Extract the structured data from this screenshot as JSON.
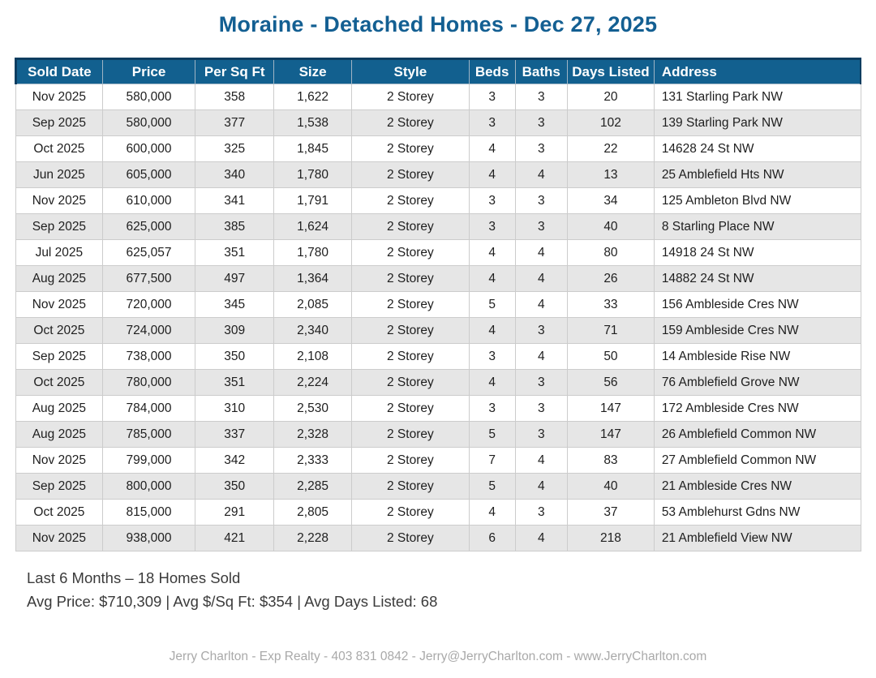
{
  "page": {
    "title": "Moraine - Detached Homes - Dec 27, 2025"
  },
  "table": {
    "columns": [
      "Sold Date",
      "Price",
      "Per Sq Ft",
      "Size",
      "Style",
      "Beds",
      "Baths",
      "Days Listed",
      "Address"
    ],
    "column_keys": [
      "sold-date",
      "price",
      "per-sq-ft",
      "size",
      "style",
      "beds",
      "baths",
      "days-listed",
      "address"
    ],
    "rows": [
      [
        "Nov 2025",
        "580,000",
        "358",
        "1,622",
        "2 Storey",
        "3",
        "3",
        "20",
        "131 Starling Park NW"
      ],
      [
        "Sep 2025",
        "580,000",
        "377",
        "1,538",
        "2 Storey",
        "3",
        "3",
        "102",
        "139 Starling Park NW"
      ],
      [
        "Oct 2025",
        "600,000",
        "325",
        "1,845",
        "2 Storey",
        "4",
        "3",
        "22",
        "14628 24 St NW"
      ],
      [
        "Jun 2025",
        "605,000",
        "340",
        "1,780",
        "2 Storey",
        "4",
        "4",
        "13",
        "25 Amblefield Hts NW"
      ],
      [
        "Nov 2025",
        "610,000",
        "341",
        "1,791",
        "2 Storey",
        "3",
        "3",
        "34",
        "125 Ambleton Blvd NW"
      ],
      [
        "Sep 2025",
        "625,000",
        "385",
        "1,624",
        "2 Storey",
        "3",
        "3",
        "40",
        "8 Starling Place NW"
      ],
      [
        "Jul 2025",
        "625,057",
        "351",
        "1,780",
        "2 Storey",
        "4",
        "4",
        "80",
        "14918 24 St NW"
      ],
      [
        "Aug 2025",
        "677,500",
        "497",
        "1,364",
        "2 Storey",
        "4",
        "4",
        "26",
        "14882 24 St NW"
      ],
      [
        "Nov 2025",
        "720,000",
        "345",
        "2,085",
        "2 Storey",
        "5",
        "4",
        "33",
        "156 Ambleside Cres NW"
      ],
      [
        "Oct 2025",
        "724,000",
        "309",
        "2,340",
        "2 Storey",
        "4",
        "3",
        "71",
        "159 Ambleside Cres NW"
      ],
      [
        "Sep 2025",
        "738,000",
        "350",
        "2,108",
        "2 Storey",
        "3",
        "4",
        "50",
        "14 Ambleside Rise NW"
      ],
      [
        "Oct 2025",
        "780,000",
        "351",
        "2,224",
        "2 Storey",
        "4",
        "3",
        "56",
        "76 Amblefield Grove NW"
      ],
      [
        "Aug 2025",
        "784,000",
        "310",
        "2,530",
        "2 Storey",
        "3",
        "3",
        "147",
        "172 Ambleside Cres NW"
      ],
      [
        "Aug 2025",
        "785,000",
        "337",
        "2,328",
        "2 Storey",
        "5",
        "3",
        "147",
        "26 Amblefield Common NW"
      ],
      [
        "Nov 2025",
        "799,000",
        "342",
        "2,333",
        "2 Storey",
        "7",
        "4",
        "83",
        "27 Amblefield Common NW"
      ],
      [
        "Sep 2025",
        "800,000",
        "350",
        "2,285",
        "2 Storey",
        "5",
        "4",
        "40",
        "21 Ambleside Cres NW"
      ],
      [
        "Oct 2025",
        "815,000",
        "291",
        "2,805",
        "2 Storey",
        "4",
        "3",
        "37",
        "53 Amblehurst Gdns NW"
      ],
      [
        "Nov 2025",
        "938,000",
        "421",
        "2,228",
        "2 Storey",
        "6",
        "4",
        "218",
        "21 Amblefield View NW"
      ]
    ]
  },
  "summary": {
    "homes_sold": "Last 6 Months – 18 Homes Sold",
    "averages": "Avg Price: $710,309 | Avg $/Sq Ft: $354 | Avg Days Listed: 68"
  },
  "footer": {
    "text": "Jerry Charlton - Exp Realty - 403 831 0842 - Jerry@JerryCharlton.com - www.JerryCharlton.com"
  },
  "colors": {
    "title": "#135f92",
    "header_bg": "#12608f",
    "header_text": "#ffffff",
    "header_outline": "#0d3d60",
    "row_stripe": "#e6e6e6",
    "cell_border": "#cccccc",
    "body_text": "#1e1e1e",
    "summary_text": "#3b3b3b",
    "footer_text": "#a9a9a9"
  }
}
